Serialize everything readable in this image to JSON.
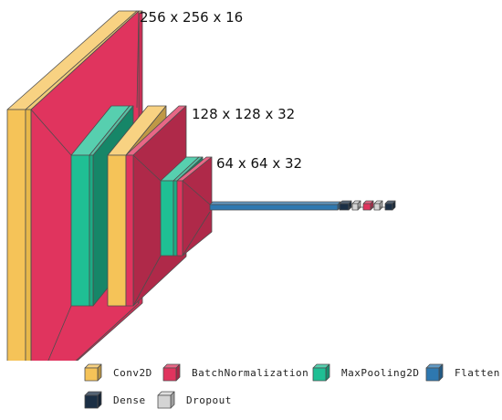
{
  "colors": {
    "conv2d": "#f5c358",
    "batch_normalization": "#e0345e",
    "maxpooling2d": "#1fbf94",
    "flatten": "#2e78b0",
    "dense": "#1b2f45",
    "dropout": "#d4d4d4",
    "edge": "#4d4d4d"
  },
  "diagram": {
    "blocks": [
      {
        "shape": "256 x 256 x 16",
        "layers": [
          "conv2d",
          "batch_normalization"
        ]
      },
      {
        "shape": "128 x 128 x 32",
        "layers": [
          "maxpooling2d",
          "conv2d",
          "batch_normalization"
        ]
      },
      {
        "shape": "64 x 64 x 32",
        "layers": [
          "maxpooling2d",
          "batch_normalization"
        ]
      }
    ],
    "tail": [
      "flatten",
      "dense",
      "dropout",
      "batch_normalization",
      "dropout",
      "dense"
    ]
  },
  "legend": [
    {
      "key": "conv2d",
      "label": "Conv2D"
    },
    {
      "key": "batch_normalization",
      "label": "BatchNormalization"
    },
    {
      "key": "maxpooling2d",
      "label": "MaxPooling2D"
    },
    {
      "key": "flatten",
      "label": "Flatten"
    },
    {
      "key": "dense",
      "label": "Dense"
    },
    {
      "key": "dropout",
      "label": "Dropout"
    }
  ]
}
